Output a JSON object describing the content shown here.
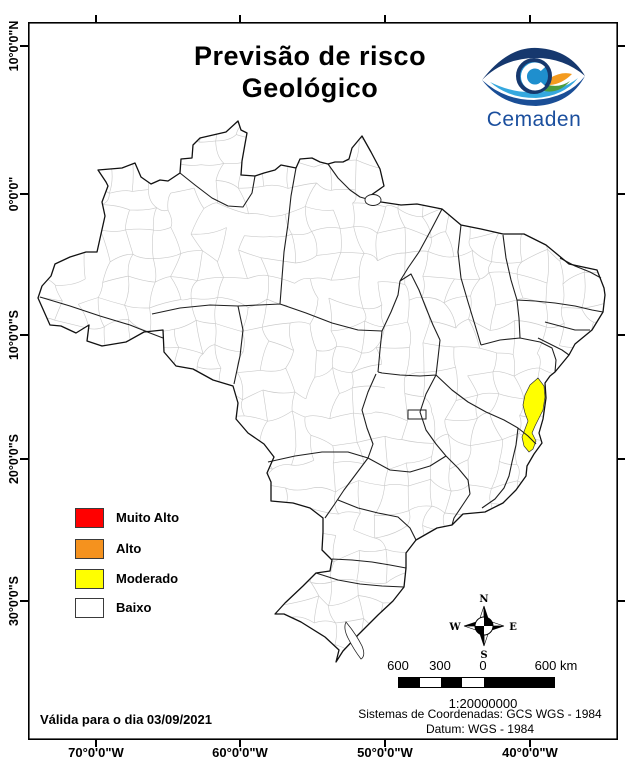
{
  "title": {
    "line1": "Previsão de risco",
    "line2": "Geológico"
  },
  "logo": {
    "text": "Cemaden",
    "brand_blue": "#1B4F9E",
    "eye_dark_blue": "#16386E",
    "eye_light_blue": "#35A8DF",
    "accent_orange": "#F49B1F",
    "accent_green": "#4C9C3E"
  },
  "axes": {
    "latitude_labels": [
      "10°0'0\"N",
      "0°0'0\"",
      "10°0'0\"S",
      "20°0'0\"S",
      "30°0'0\"S"
    ],
    "longitude_labels": [
      "70°0'0\"W",
      "60°0'0\"W",
      "50°0'0\"W",
      "40°0'0\"W"
    ]
  },
  "legend": {
    "items": [
      {
        "label": "Muito Alto",
        "color": "#FF0000"
      },
      {
        "label": "Alto",
        "color": "#F5921E"
      },
      {
        "label": "Moderado",
        "color": "#FFFF00"
      },
      {
        "label": "Baixo",
        "color": "#FFFFFF"
      }
    ]
  },
  "compass": {
    "n": "N",
    "s": "S",
    "e": "E",
    "w": "W"
  },
  "scale_bar": {
    "labels": [
      "600",
      "300",
      "0",
      "600 km"
    ],
    "ratio": "1:20000000"
  },
  "footer": {
    "validity": "Válida para o dia 03/09/2021",
    "coord_system": "Sistemas de Coordenadas: GCS WGS - 1984",
    "datum": "Datum: WGS - 1984"
  },
  "map": {
    "land_color": "#FFFFFF",
    "state_border_color": "#1F1F1F",
    "municipal_border_color": "#CBCBCB",
    "highlighted_region": {
      "risk_level": "Moderado",
      "color": "#FFFF00"
    }
  }
}
